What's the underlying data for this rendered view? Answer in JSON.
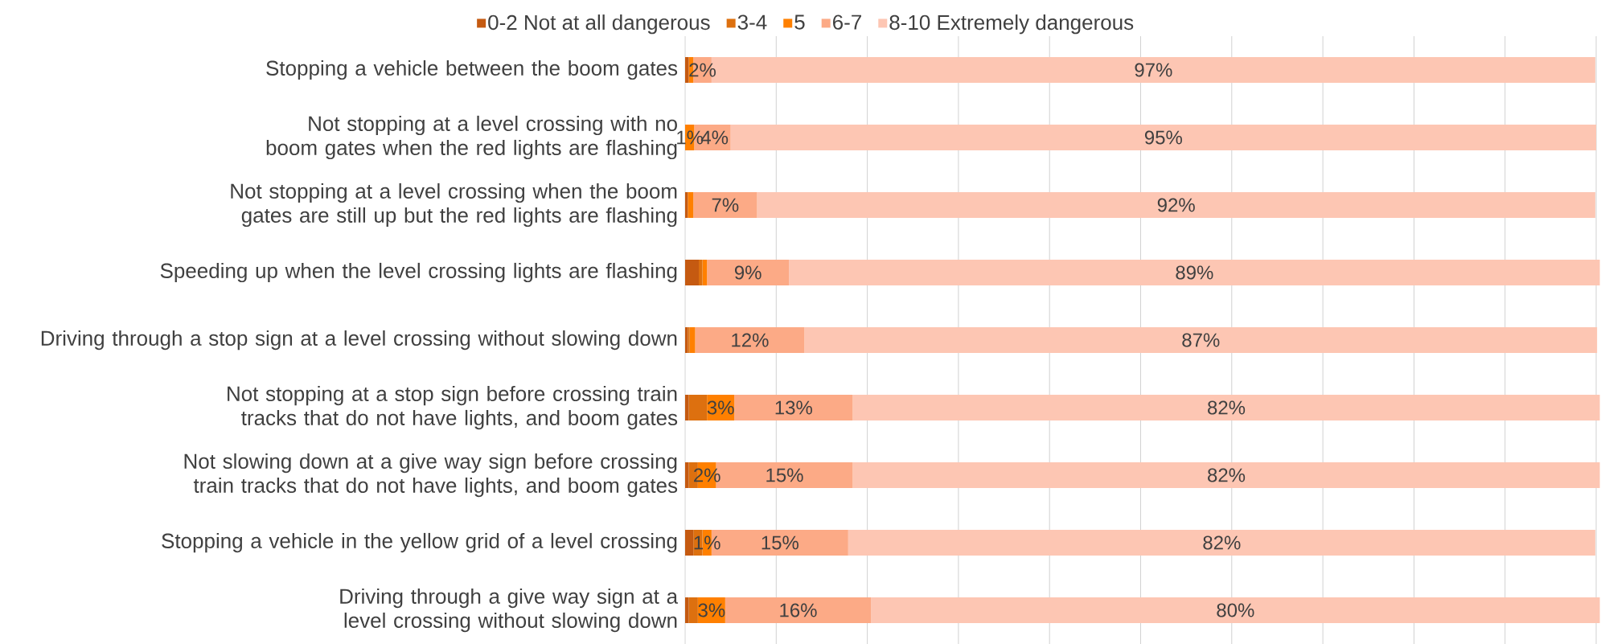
{
  "chart_data": {
    "type": "bar",
    "orientation": "horizontal",
    "stacked": true,
    "categories": [
      "Stopping a vehicle between the boom gates",
      "Not stopping at a level crossing with no boom gates when the red lights are flashing",
      "Not stopping at a level crossing when the boom gates are still up but the red lights are flashing",
      "Speeding up when the level crossing lights are flashing",
      "Driving through a stop sign at a level crossing without slowing down",
      "Not stopping at a stop sign before crossing train tracks that do not have lights, and boom gates",
      "Not slowing down at a give way sign before crossing train tracks that do not have lights, and boom gates",
      "Stopping a vehicle in the yellow grid of a level crossing",
      "Driving through a give way sign at a level crossing without slowing down"
    ],
    "series": [
      {
        "name": "0-2 Not at all dangerous",
        "color": "#c55a11",
        "values": [
          0.4,
          0,
          0.3,
          1.5,
          0.3,
          0.4,
          0.4,
          0.9,
          0.4
        ]
      },
      {
        "name": "3-4",
        "color": "#dd700f",
        "values": [
          0,
          0,
          0,
          0.4,
          0.2,
          2,
          1,
          1,
          1
        ]
      },
      {
        "name": "5",
        "color": "#ff8000",
        "values": [
          0.5,
          1,
          0.6,
          0.5,
          0.6,
          3,
          2,
          1,
          3
        ],
        "value_labels": [
          null,
          "1%",
          null,
          null,
          null,
          "3%",
          "2%",
          "1%",
          "3%"
        ]
      },
      {
        "name": "6-7",
        "color": "#fcaa86",
        "values": [
          2,
          4,
          7,
          9,
          12,
          13,
          15,
          15,
          16
        ],
        "value_labels": [
          "2%",
          "4%",
          "7%",
          "9%",
          "12%",
          "13%",
          "15%",
          "15%",
          "16%"
        ]
      },
      {
        "name": "8-10 Extremely dangerous",
        "color": "#fdc6b3",
        "values": [
          97,
          95,
          92,
          89,
          87,
          82,
          82,
          82,
          80
        ],
        "value_labels": [
          "97%",
          "95%",
          "92%",
          "89%",
          "87%",
          "82%",
          "82%",
          "82%",
          "80%"
        ]
      }
    ],
    "xlim": [
      0,
      100
    ],
    "xticks": [
      {
        "value": 0,
        "label": null
      },
      {
        "value": 10,
        "label": null
      },
      {
        "value": 20,
        "label": null
      },
      {
        "value": 30,
        "label": null
      },
      {
        "value": 40,
        "label": null
      },
      {
        "value": 50,
        "label": null
      },
      {
        "value": 60,
        "label": null
      },
      {
        "value": 70,
        "label": null
      },
      {
        "value": 80,
        "label": null
      },
      {
        "value": 90,
        "label": null
      },
      {
        "value": 100,
        "label": null
      }
    ],
    "grid": "x",
    "legend": "top",
    "tick_labels": "y"
  }
}
